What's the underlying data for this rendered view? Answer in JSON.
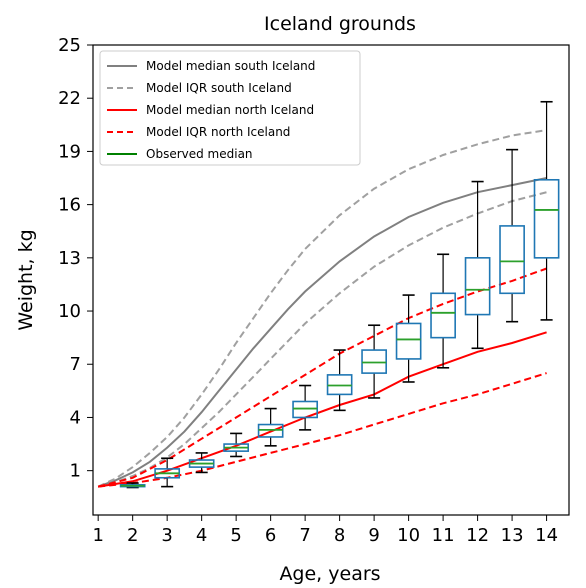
{
  "chart_data": {
    "type": "box",
    "title": "Iceland grounds",
    "xlabel": "Age, years",
    "ylabel": "Weight, kg",
    "x_ticks": [
      1,
      2,
      3,
      4,
      5,
      6,
      7,
      8,
      9,
      10,
      11,
      12,
      13,
      14
    ],
    "y_ticks": [
      1,
      4,
      7,
      10,
      13,
      16,
      19,
      22,
      25
    ],
    "xlim": [
      0.85,
      14.65
    ],
    "ylim": [
      -1.5,
      25
    ],
    "grid": false,
    "legend_position": "top-left",
    "legend": [
      {
        "label": "Model median south Iceland",
        "color": "#808080",
        "dash": "solid"
      },
      {
        "label": "Model IQR south Iceland",
        "color": "#a0a0a0",
        "dash": "dashed"
      },
      {
        "label": "Model median north Iceland",
        "color": "#ff0000",
        "dash": "solid"
      },
      {
        "label": "Model IQR north Iceland",
        "color": "#ff0000",
        "dash": "dashed"
      },
      {
        "label": "Observed median",
        "color": "#008000",
        "dash": "solid"
      }
    ],
    "series": [
      {
        "name": "Model median south Iceland",
        "color": "#808080",
        "dash": "solid",
        "x": [
          1,
          1.5,
          2,
          2.5,
          3,
          3.5,
          4,
          4.5,
          5,
          5.5,
          6,
          6.5,
          7,
          8,
          9,
          10,
          11,
          12,
          13,
          14
        ],
        "y": [
          0.1,
          0.45,
          0.9,
          1.5,
          2.3,
          3.2,
          4.3,
          5.5,
          6.7,
          7.9,
          9.0,
          10.1,
          11.1,
          12.8,
          14.2,
          15.3,
          16.1,
          16.7,
          17.1,
          17.5
        ]
      },
      {
        "name": "Model IQR south Iceland",
        "color": "#a0a0a0",
        "dash": "dashed",
        "x": [
          1,
          1.5,
          2,
          2.5,
          3,
          3.5,
          4,
          4.5,
          5,
          5.5,
          6,
          6.5,
          7,
          8,
          9,
          10,
          11,
          12,
          13,
          14
        ],
        "y": [
          0.1,
          0.55,
          1.2,
          2.0,
          2.9,
          4.0,
          5.3,
          6.7,
          8.2,
          9.6,
          11.0,
          12.3,
          13.5,
          15.4,
          16.9,
          18.0,
          18.8,
          19.4,
          19.9,
          20.2
        ]
      },
      {
        "name": "Model IQR south Iceland",
        "color": "#a0a0a0",
        "dash": "dashed",
        "x": [
          1,
          1.5,
          2,
          2.5,
          3,
          3.5,
          4,
          4.5,
          5,
          5.5,
          6,
          6.5,
          7,
          8,
          9,
          10,
          11,
          12,
          13,
          14
        ],
        "y": [
          0.1,
          0.35,
          0.7,
          1.15,
          1.75,
          2.5,
          3.4,
          4.3,
          5.3,
          6.3,
          7.3,
          8.3,
          9.3,
          11.0,
          12.5,
          13.7,
          14.7,
          15.5,
          16.2,
          16.7
        ]
      },
      {
        "name": "Model median north Iceland",
        "color": "#ff0000",
        "dash": "solid",
        "x": [
          1,
          2,
          3,
          4,
          5,
          6,
          7,
          8,
          9,
          10,
          11,
          12,
          13,
          14
        ],
        "y": [
          0.1,
          0.4,
          1.0,
          1.7,
          2.4,
          3.2,
          4.0,
          4.7,
          5.3,
          6.3,
          7.0,
          7.7,
          8.2,
          8.8
        ]
      },
      {
        "name": "Model IQR north Iceland",
        "color": "#ff0000",
        "dash": "dashed",
        "x": [
          1,
          2,
          3,
          4,
          5,
          6,
          7,
          8,
          9,
          10,
          11,
          12,
          13,
          14
        ],
        "y": [
          0.1,
          0.6,
          1.6,
          2.8,
          4.0,
          5.2,
          6.4,
          7.6,
          8.6,
          9.6,
          10.4,
          11.1,
          11.7,
          12.4
        ]
      },
      {
        "name": "Model IQR north Iceland",
        "color": "#ff0000",
        "dash": "dashed",
        "x": [
          1,
          2,
          3,
          4,
          5,
          6,
          7,
          8,
          9,
          10,
          11,
          12,
          13,
          14
        ],
        "y": [
          0.1,
          0.3,
          0.6,
          1.0,
          1.5,
          2.0,
          2.5,
          3.0,
          3.6,
          4.2,
          4.8,
          5.3,
          5.9,
          6.5
        ]
      }
    ],
    "boxes": {
      "box_color": "#1f77b4",
      "median_color": "#2ca02c",
      "x": [
        2,
        3,
        4,
        5,
        6,
        7,
        8,
        9,
        10,
        11,
        12,
        13,
        14
      ],
      "whisker_low": [
        0.05,
        0.1,
        0.9,
        1.8,
        2.4,
        3.3,
        4.4,
        5.1,
        6.0,
        6.8,
        7.9,
        9.4,
        9.5
      ],
      "q1": [
        0.1,
        0.6,
        1.2,
        2.1,
        2.9,
        4.0,
        5.3,
        6.5,
        7.3,
        8.5,
        9.8,
        11.0,
        13.0
      ],
      "median": [
        0.15,
        0.85,
        1.4,
        2.3,
        3.3,
        4.5,
        5.8,
        7.1,
        8.4,
        9.9,
        11.2,
        12.8,
        15.7
      ],
      "q3": [
        0.2,
        1.1,
        1.6,
        2.5,
        3.6,
        4.9,
        6.4,
        7.8,
        9.3,
        11.0,
        13.0,
        14.8,
        17.4
      ],
      "whisker_high": [
        0.3,
        1.7,
        2.0,
        3.1,
        4.5,
        5.8,
        7.8,
        9.2,
        10.9,
        13.2,
        17.3,
        19.1,
        21.8
      ]
    }
  }
}
